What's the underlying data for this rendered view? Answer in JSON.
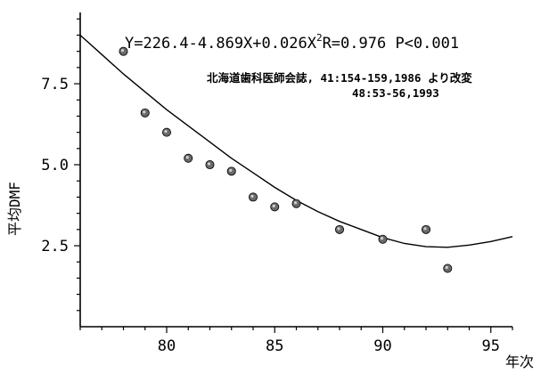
{
  "chart_data": {
    "type": "scatter",
    "title": "",
    "xlabel": "年次",
    "ylabel": "平均DMF",
    "xlim": [
      76,
      96
    ],
    "ylim": [
      0,
      9.7
    ],
    "xticks": [
      "80",
      "85",
      "90",
      "95"
    ],
    "yticks": [
      "2.5",
      "5.0",
      "7.5"
    ],
    "xtick_values": [
      80,
      85,
      90,
      95
    ],
    "ytick_values": [
      2.5,
      5.0,
      7.5
    ],
    "grid": false,
    "annotations": {
      "equation": "Y=226.4-4.869X+0.026X",
      "equation_sup": "2",
      "equation_tail": "R=0.976 P<0.001",
      "source_line1": "北海道歯科医師会誌, 41:154-159,1986 より改変",
      "source_line2": "48:53-56,1993"
    },
    "points": {
      "x": [
        78,
        79,
        80,
        81,
        82,
        83,
        84,
        85,
        86,
        88,
        90,
        92,
        93
      ],
      "y": [
        8.5,
        6.6,
        6.0,
        5.2,
        5.0,
        4.8,
        4.0,
        3.7,
        3.8,
        3.0,
        2.7,
        3.0,
        1.8
      ]
    },
    "fit_curve": {
      "x": [
        76,
        77,
        78,
        79,
        80,
        81,
        82,
        83,
        84,
        85,
        86,
        87,
        88,
        89,
        90,
        91,
        92,
        93,
        94,
        95,
        96
      ],
      "y": [
        9.0,
        8.4,
        7.8,
        7.25,
        6.7,
        6.2,
        5.7,
        5.2,
        4.75,
        4.3,
        3.9,
        3.55,
        3.25,
        3.0,
        2.75,
        2.57,
        2.47,
        2.45,
        2.52,
        2.63,
        2.78
      ]
    }
  }
}
